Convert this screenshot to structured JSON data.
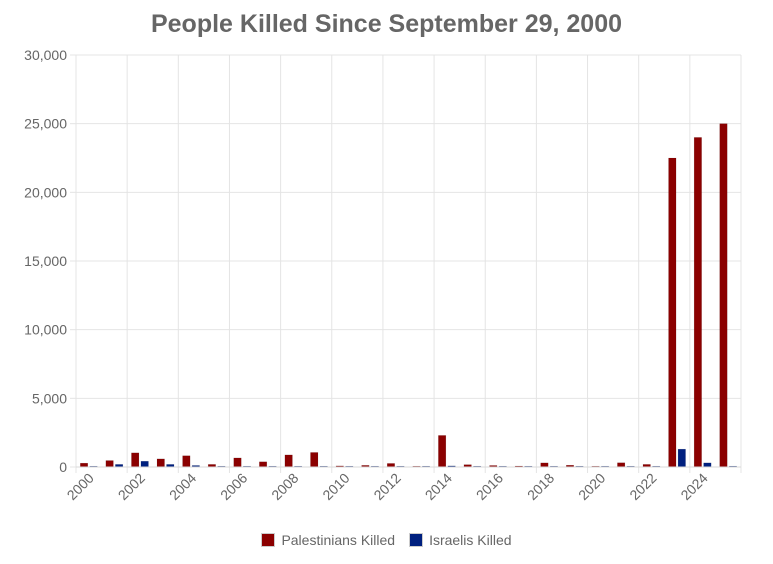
{
  "chart_data": {
    "type": "bar",
    "title": "People Killed Since September 29, 2000",
    "xlabel": "",
    "ylabel": "",
    "ylim": [
      0,
      30000
    ],
    "y_ticks": [
      "0",
      "5,000",
      "10,000",
      "15,000",
      "20,000",
      "25,000",
      "30,000"
    ],
    "x_tick_labels": [
      "2000",
      "2002",
      "2004",
      "2006",
      "2008",
      "2010",
      "2012",
      "2014",
      "2016",
      "2018",
      "2020",
      "2022",
      "2024"
    ],
    "categories": [
      "2000",
      "2001",
      "2002",
      "2003",
      "2004",
      "2005",
      "2006",
      "2007",
      "2008",
      "2009",
      "2010",
      "2011",
      "2012",
      "2013",
      "2014",
      "2015",
      "2016",
      "2017",
      "2018",
      "2019",
      "2020",
      "2021",
      "2022",
      "2023",
      "2024",
      "2025"
    ],
    "grid": true,
    "legend_position": "bottom",
    "series": [
      {
        "name": "Palestinians Killed",
        "color": "#8b0000",
        "values": [
          280,
          470,
          1030,
          590,
          820,
          190,
          660,
          380,
          880,
          1060,
          80,
          120,
          260,
          40,
          2300,
          170,
          110,
          70,
          300,
          130,
          30,
          310,
          190,
          22500,
          24000,
          25000
        ]
      },
      {
        "name": "Israelis Killed",
        "color": "#00207f",
        "values": [
          40,
          190,
          420,
          190,
          110,
          50,
          30,
          10,
          30,
          10,
          10,
          20,
          10,
          10,
          80,
          30,
          20,
          20,
          10,
          10,
          10,
          10,
          30,
          1300,
          300,
          60
        ]
      }
    ]
  }
}
